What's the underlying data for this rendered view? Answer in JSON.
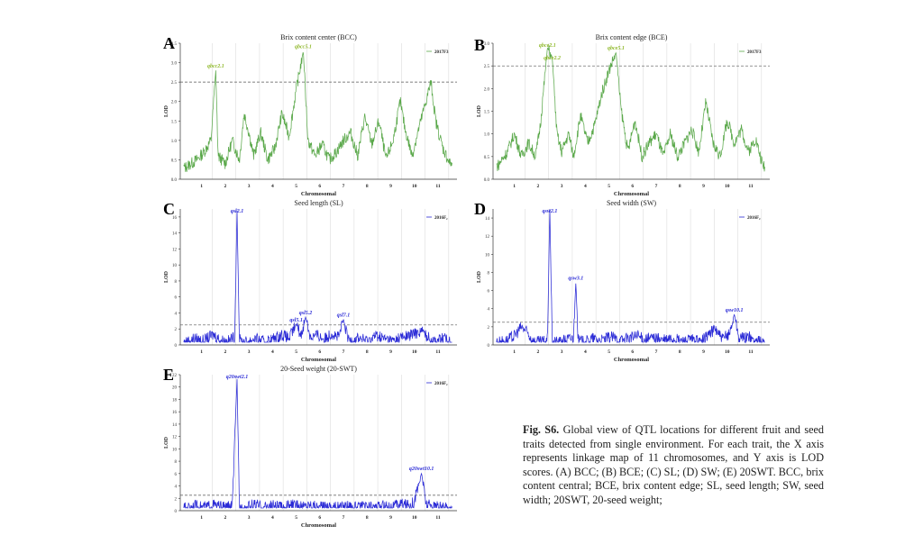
{
  "caption": {
    "label": "Fig. S6.",
    "text": "Global view of QTL locations for different fruit and seed traits detected from single environment. For each trait, the X axis represents linkage map of 11 chromosomes, and Y axis is LOD scores. (A) BCC; (B) BCE; (C) SL; (D) SW; (E) 20SWT. BCC, brix content central; BCE, brix content edge; SL, seed length; SW, seed width; 20SWT, 20-seed weight;"
  },
  "colors": {
    "green": "#5aa84a",
    "blue": "#2a2ad6",
    "qtl_green": "#8fb82a",
    "qtl_blue": "#2a2ad6"
  },
  "chart_data": [
    {
      "panel": "A",
      "type": "line",
      "title": "Brix content center (BCC)",
      "xlabel": "Chromosomal",
      "ylabel": "LOD",
      "legend": "2017F3",
      "legend_position": "top-right",
      "ylim": [
        0,
        3.5
      ],
      "yticks": [
        "0.0",
        "0.5",
        "1.0",
        "1.5",
        "2.0",
        "2.5",
        "3.0",
        "3.5"
      ],
      "threshold": 2.5,
      "color": "green",
      "chromosomes": [
        "1",
        "2",
        "3",
        "4",
        "5",
        "6",
        "7",
        "8",
        "9",
        "10",
        "11"
      ],
      "peaks": [
        {
          "label": "qbcc2.1",
          "chrom_pos": 1.5,
          "lod": 2.8
        },
        {
          "label": "qbcc5.1",
          "chrom_pos": 5.2,
          "lod": 3.3
        }
      ],
      "series_profile": [
        [
          0.2,
          0.3
        ],
        [
          0.7,
          0.5
        ],
        [
          1.0,
          0.7
        ],
        [
          1.3,
          1.0
        ],
        [
          1.5,
          2.8
        ],
        [
          1.6,
          0.6
        ],
        [
          1.9,
          0.4
        ],
        [
          2.2,
          1.0
        ],
        [
          2.5,
          0.5
        ],
        [
          2.7,
          1.7
        ],
        [
          2.9,
          1.2
        ],
        [
          3.1,
          0.6
        ],
        [
          3.4,
          1.2
        ],
        [
          3.7,
          0.5
        ],
        [
          4.0,
          0.8
        ],
        [
          4.3,
          1.7
        ],
        [
          4.6,
          1.1
        ],
        [
          4.9,
          2.3
        ],
        [
          5.2,
          3.3
        ],
        [
          5.4,
          1.0
        ],
        [
          5.7,
          0.6
        ],
        [
          6.0,
          0.9
        ],
        [
          6.3,
          0.5
        ],
        [
          6.6,
          0.7
        ],
        [
          6.9,
          1.0
        ],
        [
          7.2,
          1.2
        ],
        [
          7.5,
          0.6
        ],
        [
          7.8,
          1.6
        ],
        [
          8.1,
          0.9
        ],
        [
          8.4,
          1.5
        ],
        [
          8.7,
          0.5
        ],
        [
          9.0,
          1.0
        ],
        [
          9.3,
          2.0
        ],
        [
          9.5,
          1.3
        ],
        [
          9.8,
          0.6
        ],
        [
          10.0,
          1.1
        ],
        [
          10.3,
          1.8
        ],
        [
          10.6,
          2.5
        ],
        [
          10.8,
          1.5
        ],
        [
          11.1,
          0.8
        ],
        [
          11.4,
          0.4
        ]
      ]
    },
    {
      "panel": "B",
      "type": "line",
      "title": "Brix content edge (BCE)",
      "xlabel": "Chromosomal",
      "ylabel": "LOD",
      "legend": "2017F3",
      "legend_position": "top-right",
      "ylim": [
        0,
        3.0
      ],
      "yticks": [
        "0.0",
        "0.5",
        "1.0",
        "1.5",
        "2.0",
        "2.5",
        "3.0"
      ],
      "threshold": 2.5,
      "color": "green",
      "chromosomes": [
        "1",
        "2",
        "3",
        "4",
        "5",
        "6",
        "7",
        "8",
        "9",
        "10",
        "11"
      ],
      "peaks": [
        {
          "label": "qbce2.1",
          "chrom_pos": 2.3,
          "lod": 2.9
        },
        {
          "label": "qbce2.2",
          "chrom_pos": 2.5,
          "lod": 2.7
        },
        {
          "label": "qbce5.1",
          "chrom_pos": 5.2,
          "lod": 2.8
        }
      ],
      "series_profile": [
        [
          0.2,
          0.3
        ],
        [
          0.6,
          0.6
        ],
        [
          0.9,
          1.0
        ],
        [
          1.2,
          0.5
        ],
        [
          1.5,
          0.8
        ],
        [
          1.8,
          0.5
        ],
        [
          2.0,
          1.2
        ],
        [
          2.3,
          2.9
        ],
        [
          2.5,
          2.7
        ],
        [
          2.7,
          1.0
        ],
        [
          2.9,
          0.6
        ],
        [
          3.2,
          1.0
        ],
        [
          3.4,
          0.5
        ],
        [
          3.7,
          1.4
        ],
        [
          4.0,
          0.8
        ],
        [
          4.3,
          1.2
        ],
        [
          4.6,
          1.9
        ],
        [
          4.9,
          2.4
        ],
        [
          5.2,
          2.8
        ],
        [
          5.4,
          1.6
        ],
        [
          5.7,
          0.6
        ],
        [
          6.0,
          1.3
        ],
        [
          6.3,
          0.5
        ],
        [
          6.6,
          0.8
        ],
        [
          6.9,
          1.0
        ],
        [
          7.2,
          0.5
        ],
        [
          7.5,
          1.0
        ],
        [
          7.8,
          0.5
        ],
        [
          8.1,
          0.8
        ],
        [
          8.4,
          1.1
        ],
        [
          8.7,
          0.6
        ],
        [
          9.0,
          1.7
        ],
        [
          9.3,
          0.8
        ],
        [
          9.6,
          0.5
        ],
        [
          9.9,
          1.3
        ],
        [
          10.2,
          0.8
        ],
        [
          10.5,
          1.1
        ],
        [
          10.8,
          0.6
        ],
        [
          11.1,
          0.9
        ],
        [
          11.4,
          0.3
        ]
      ]
    },
    {
      "panel": "C",
      "type": "line",
      "title": "Seed length (SL)",
      "xlabel": "Chromosomal",
      "ylabel": "LOD",
      "legend": "2016F₂",
      "legend_position": "top-right",
      "ylim": [
        0,
        17
      ],
      "yticks": [
        "0",
        "2",
        "4",
        "6",
        "8",
        "10",
        "12",
        "14",
        "16"
      ],
      "threshold": 2.5,
      "color": "blue",
      "chromosomes": [
        "1",
        "2",
        "3",
        "4",
        "5",
        "6",
        "7",
        "8",
        "9",
        "10",
        "11"
      ],
      "peaks": [
        {
          "label": "qsl2.1",
          "chrom_pos": 2.4,
          "lod": 16.8
        },
        {
          "label": "qsl5.1",
          "chrom_pos": 4.9,
          "lod": 2.6
        },
        {
          "label": "qsl5.2",
          "chrom_pos": 5.3,
          "lod": 3.5
        },
        {
          "label": "qsl7.1",
          "chrom_pos": 6.9,
          "lod": 3.2
        }
      ],
      "series_profile": [
        [
          0.2,
          0.3
        ],
        [
          0.6,
          0.8
        ],
        [
          1.0,
          0.5
        ],
        [
          1.4,
          1.3
        ],
        [
          1.7,
          0.6
        ],
        [
          2.0,
          0.4
        ],
        [
          2.3,
          1.0
        ],
        [
          2.4,
          16.8
        ],
        [
          2.5,
          0.6
        ],
        [
          2.8,
          0.3
        ],
        [
          3.1,
          0.8
        ],
        [
          3.5,
          0.4
        ],
        [
          3.9,
          0.7
        ],
        [
          4.3,
          1.3
        ],
        [
          4.6,
          0.8
        ],
        [
          4.9,
          2.6
        ],
        [
          5.1,
          1.2
        ],
        [
          5.3,
          3.5
        ],
        [
          5.5,
          1.0
        ],
        [
          5.8,
          1.2
        ],
        [
          6.1,
          0.7
        ],
        [
          6.4,
          1.5
        ],
        [
          6.7,
          0.9
        ],
        [
          6.9,
          3.2
        ],
        [
          7.1,
          0.6
        ],
        [
          7.5,
          0.9
        ],
        [
          7.9,
          0.5
        ],
        [
          8.3,
          1.2
        ],
        [
          8.6,
          0.8
        ],
        [
          9.0,
          0.5
        ],
        [
          9.3,
          0.9
        ],
        [
          9.6,
          1.1
        ],
        [
          9.9,
          1.4
        ],
        [
          10.2,
          1.8
        ],
        [
          10.5,
          0.9
        ],
        [
          10.8,
          0.5
        ],
        [
          11.1,
          0.8
        ],
        [
          11.4,
          0.4
        ]
      ]
    },
    {
      "panel": "D",
      "type": "line",
      "title": "Seed width (SW)",
      "xlabel": "Chromosomal",
      "ylabel": "LOD",
      "legend": "2016F₂",
      "legend_position": "top-right",
      "ylim": [
        0,
        15
      ],
      "yticks": [
        "0",
        "2",
        "4",
        "6",
        "8",
        "10",
        "12",
        "14"
      ],
      "threshold": 2.5,
      "color": "blue",
      "chromosomes": [
        "1",
        "2",
        "3",
        "4",
        "5",
        "6",
        "7",
        "8",
        "9",
        "10",
        "11"
      ],
      "peaks": [
        {
          "label": "qsw2.1",
          "chrom_pos": 2.4,
          "lod": 15.2
        },
        {
          "label": "qsw3.1",
          "chrom_pos": 3.5,
          "lod": 6.9
        },
        {
          "label": "qsw10.1",
          "chrom_pos": 10.2,
          "lod": 3.4
        }
      ],
      "series_profile": [
        [
          0.2,
          0.3
        ],
        [
          0.6,
          0.5
        ],
        [
          0.9,
          1.0
        ],
        [
          1.2,
          2.0
        ],
        [
          1.4,
          1.5
        ],
        [
          1.7,
          0.4
        ],
        [
          2.0,
          0.3
        ],
        [
          2.3,
          0.5
        ],
        [
          2.4,
          15.2
        ],
        [
          2.5,
          0.4
        ],
        [
          2.8,
          0.3
        ],
        [
          3.1,
          0.6
        ],
        [
          3.4,
          0.8
        ],
        [
          3.5,
          6.9
        ],
        [
          3.6,
          0.5
        ],
        [
          3.9,
          0.3
        ],
        [
          4.2,
          0.7
        ],
        [
          4.6,
          0.5
        ],
        [
          5.0,
          0.9
        ],
        [
          5.4,
          0.5
        ],
        [
          5.8,
          0.8
        ],
        [
          6.1,
          1.0
        ],
        [
          6.4,
          0.6
        ],
        [
          6.8,
          0.8
        ],
        [
          7.2,
          0.5
        ],
        [
          7.6,
          0.7
        ],
        [
          8.0,
          0.4
        ],
        [
          8.4,
          0.6
        ],
        [
          8.8,
          0.3
        ],
        [
          9.1,
          1.2
        ],
        [
          9.4,
          1.8
        ],
        [
          9.7,
          0.6
        ],
        [
          10.0,
          1.3
        ],
        [
          10.2,
          3.4
        ],
        [
          10.4,
          0.7
        ],
        [
          10.8,
          0.9
        ],
        [
          11.1,
          0.4
        ],
        [
          11.4,
          0.3
        ]
      ]
    },
    {
      "panel": "E",
      "type": "line",
      "title": "20-Seed weight (20-SWT)",
      "xlabel": "Chromosomal",
      "ylabel": "LOD",
      "legend": "2016F₂",
      "legend_position": "top-right",
      "ylim": [
        0,
        22
      ],
      "yticks": [
        "0",
        "2",
        "4",
        "6",
        "8",
        "10",
        "12",
        "14",
        "16",
        "18",
        "20",
        "22"
      ],
      "threshold": 2.5,
      "color": "blue",
      "chromosomes": [
        "1",
        "2",
        "3",
        "4",
        "5",
        "6",
        "7",
        "8",
        "9",
        "10",
        "11"
      ],
      "peaks": [
        {
          "label": "q20swt2.1",
          "chrom_pos": 2.4,
          "lod": 21.3
        },
        {
          "label": "q20swt10.1",
          "chrom_pos": 10.2,
          "lod": 6.1
        }
      ],
      "series_profile": [
        [
          0.2,
          0.4
        ],
        [
          0.6,
          0.8
        ],
        [
          1.0,
          0.5
        ],
        [
          1.4,
          0.9
        ],
        [
          1.8,
          0.5
        ],
        [
          2.2,
          0.7
        ],
        [
          2.4,
          21.3
        ],
        [
          2.5,
          0.5
        ],
        [
          2.8,
          0.4
        ],
        [
          3.1,
          1.0
        ],
        [
          3.5,
          0.5
        ],
        [
          3.9,
          0.8
        ],
        [
          4.3,
          0.5
        ],
        [
          4.7,
          0.9
        ],
        [
          5.1,
          0.6
        ],
        [
          5.5,
          1.0
        ],
        [
          5.9,
          0.5
        ],
        [
          6.3,
          0.8
        ],
        [
          6.7,
          0.5
        ],
        [
          7.1,
          0.9
        ],
        [
          7.5,
          0.4
        ],
        [
          7.9,
          0.7
        ],
        [
          8.3,
          0.5
        ],
        [
          8.7,
          0.8
        ],
        [
          9.0,
          0.6
        ],
        [
          9.3,
          1.2
        ],
        [
          9.6,
          0.9
        ],
        [
          9.9,
          1.5
        ],
        [
          10.2,
          6.1
        ],
        [
          10.4,
          1.0
        ],
        [
          10.7,
          0.7
        ],
        [
          11.0,
          0.5
        ],
        [
          11.4,
          0.3
        ]
      ]
    }
  ]
}
